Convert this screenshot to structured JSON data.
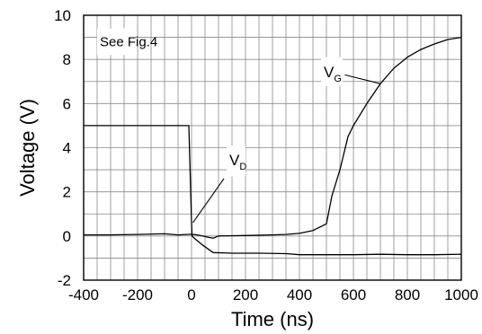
{
  "chart_data": {
    "type": "line",
    "xlabel": "Time (ns)",
    "ylabel": "Voltage (V)",
    "xlim": [
      -400,
      1000
    ],
    "ylim": [
      -2,
      10
    ],
    "x_ticks": [
      -400,
      -200,
      0,
      200,
      400,
      600,
      800,
      1000
    ],
    "y_ticks": [
      -2,
      0,
      2,
      4,
      6,
      8,
      10
    ],
    "x_minor_step": 50,
    "y_minor_step": 1,
    "grid": true,
    "series": [
      {
        "name": "VD",
        "x": [
          -400,
          -300,
          -200,
          -100,
          -20,
          -10,
          0,
          2,
          10,
          40,
          80,
          150,
          250,
          350,
          400,
          500,
          600,
          700,
          800,
          900,
          1000
        ],
        "y": [
          5.0,
          5.0,
          5.0,
          5.0,
          5.0,
          5.0,
          0.6,
          0.0,
          -0.1,
          -0.4,
          -0.75,
          -0.78,
          -0.78,
          -0.8,
          -0.85,
          -0.85,
          -0.85,
          -0.83,
          -0.85,
          -0.85,
          -0.83
        ]
      },
      {
        "name": "VG",
        "x": [
          -400,
          -300,
          -200,
          -100,
          -50,
          0,
          20,
          40,
          60,
          80,
          100,
          200,
          300,
          350,
          400,
          450,
          500,
          520,
          550,
          580,
          600,
          650,
          700,
          750,
          800,
          850,
          900,
          950,
          1000
        ],
        "y": [
          0.05,
          0.05,
          0.07,
          0.1,
          0.05,
          0.08,
          0.05,
          0.0,
          -0.05,
          -0.1,
          0.0,
          0.02,
          0.05,
          0.07,
          0.12,
          0.25,
          0.55,
          1.8,
          3.0,
          4.5,
          5.0,
          6.0,
          6.9,
          7.6,
          8.1,
          8.45,
          8.7,
          8.9,
          9.0
        ]
      }
    ],
    "annotations": {
      "see_fig": "See Fig.4",
      "vd_main": "V",
      "vd_sub": "D",
      "vg_main": "V",
      "vg_sub": "G"
    }
  }
}
